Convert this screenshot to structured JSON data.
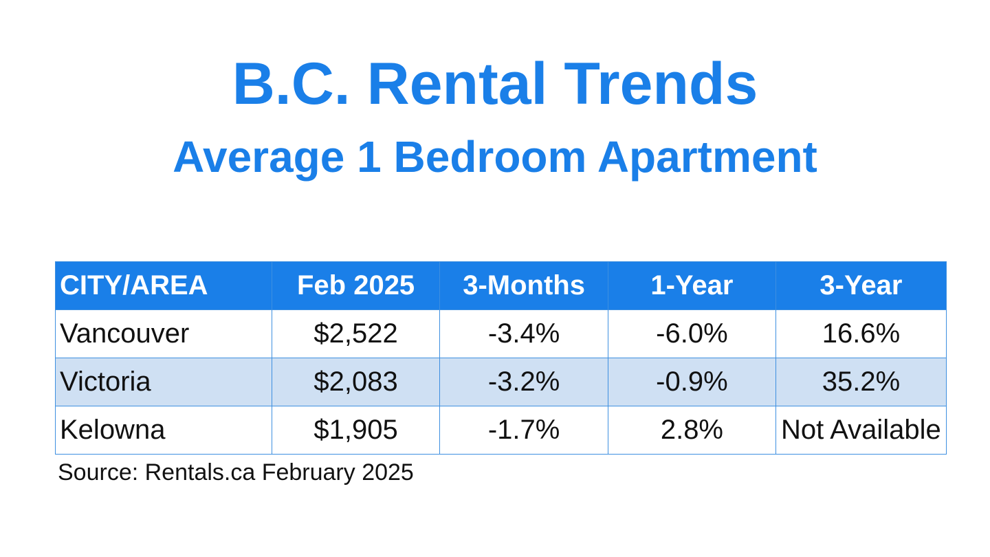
{
  "header": {
    "title": "B.C. Rental Trends",
    "subtitle": "Average 1 Bedroom Apartment"
  },
  "table": {
    "columns": [
      "CITY/AREA",
      "Feb 2025",
      "3-Months",
      "1-Year",
      "3-Year"
    ],
    "rows": [
      [
        "Vancouver",
        "$2,522",
        "-3.4%",
        "-6.0%",
        "16.6%"
      ],
      [
        "Victoria",
        "$2,083",
        "-3.2%",
        "-0.9%",
        "35.2%"
      ],
      [
        "Kelowna",
        "$1,905",
        "-1.7%",
        "2.8%",
        "Not Available"
      ]
    ]
  },
  "source": "Source: Rentals.ca February 2025"
}
